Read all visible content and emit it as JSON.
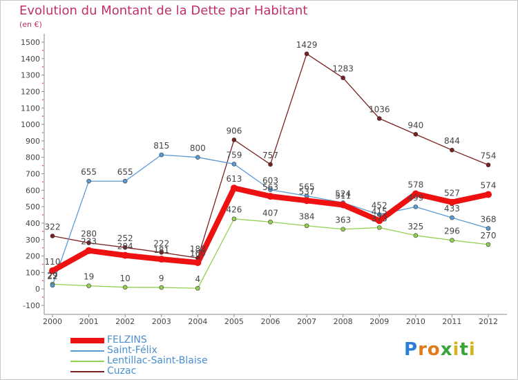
{
  "header": {
    "title": "Evolution du Montant de la Dette par Habitant",
    "unit": "(en €)"
  },
  "logo": {
    "letters": [
      "P",
      "r",
      "o",
      "x",
      "i",
      "t",
      "i"
    ],
    "colors": [
      "#2a7fd4",
      "#e07a1a",
      "#e07a1a",
      "#3aa63a",
      "#d4b21a",
      "#3aa63a",
      "#d4b21a"
    ]
  },
  "chart_data": {
    "type": "line",
    "x": [
      "2000",
      "2001",
      "2002",
      "2003",
      "2004",
      "2005",
      "2006",
      "2007",
      "2008",
      "2009",
      "2010",
      "2011",
      "2012"
    ],
    "yticks": [
      -100,
      0,
      100,
      200,
      300,
      400,
      500,
      600,
      700,
      800,
      900,
      1000,
      1100,
      1200,
      1300,
      1400,
      1500
    ],
    "ytick_labels": [
      "-100",
      "0",
      "100",
      "200",
      "300",
      "400",
      "500",
      "600",
      "700",
      "800",
      "900",
      "1000",
      "1100",
      "1200",
      "1300",
      "1400",
      "1500"
    ],
    "ylim": [
      -100,
      1550
    ],
    "grid": false,
    "legend_position": "bottom-left",
    "series": [
      {
        "name": "FELZINS",
        "color": "#ee1111",
        "values": [
          110,
          233,
          204,
          181,
          160,
          613,
          563,
          537,
          511,
          415,
          578,
          527,
          574
        ],
        "labels": [
          "110",
          "233",
          "204",
          "181",
          "160",
          "613",
          "563",
          "537",
          "511",
          "415",
          "578",
          "527",
          "574"
        ]
      },
      {
        "name": "Saint-Félix",
        "color": "#5b9bd5",
        "values": [
          22,
          655,
          655,
          815,
          800,
          759,
          603,
          565,
          524,
          452,
          499,
          433,
          368
        ],
        "labels": [
          "22",
          "655",
          "655",
          "815",
          "800",
          "759",
          "603",
          "565",
          "524",
          "452",
          "499",
          "433",
          "368"
        ]
      },
      {
        "name": "Lentillac-Saint-Blaise",
        "color": "#92d050",
        "values": [
          29,
          19,
          10,
          9,
          4,
          426,
          407,
          384,
          363,
          373,
          325,
          296,
          270
        ],
        "labels": [
          "29",
          "19",
          "10",
          "9",
          "4",
          "426",
          "407",
          "384",
          "363",
          "373",
          "325",
          "296",
          "270"
        ]
      },
      {
        "name": "Cuzac",
        "color": "#7a2020",
        "values": [
          322,
          280,
          252,
          222,
          188,
          906,
          757,
          1429,
          1283,
          1036,
          940,
          844,
          754
        ],
        "labels": [
          "322",
          "280",
          "252",
          "222",
          "188",
          "906",
          "757",
          "1429",
          "1283",
          "1036",
          "940",
          "844",
          "754"
        ]
      }
    ]
  }
}
